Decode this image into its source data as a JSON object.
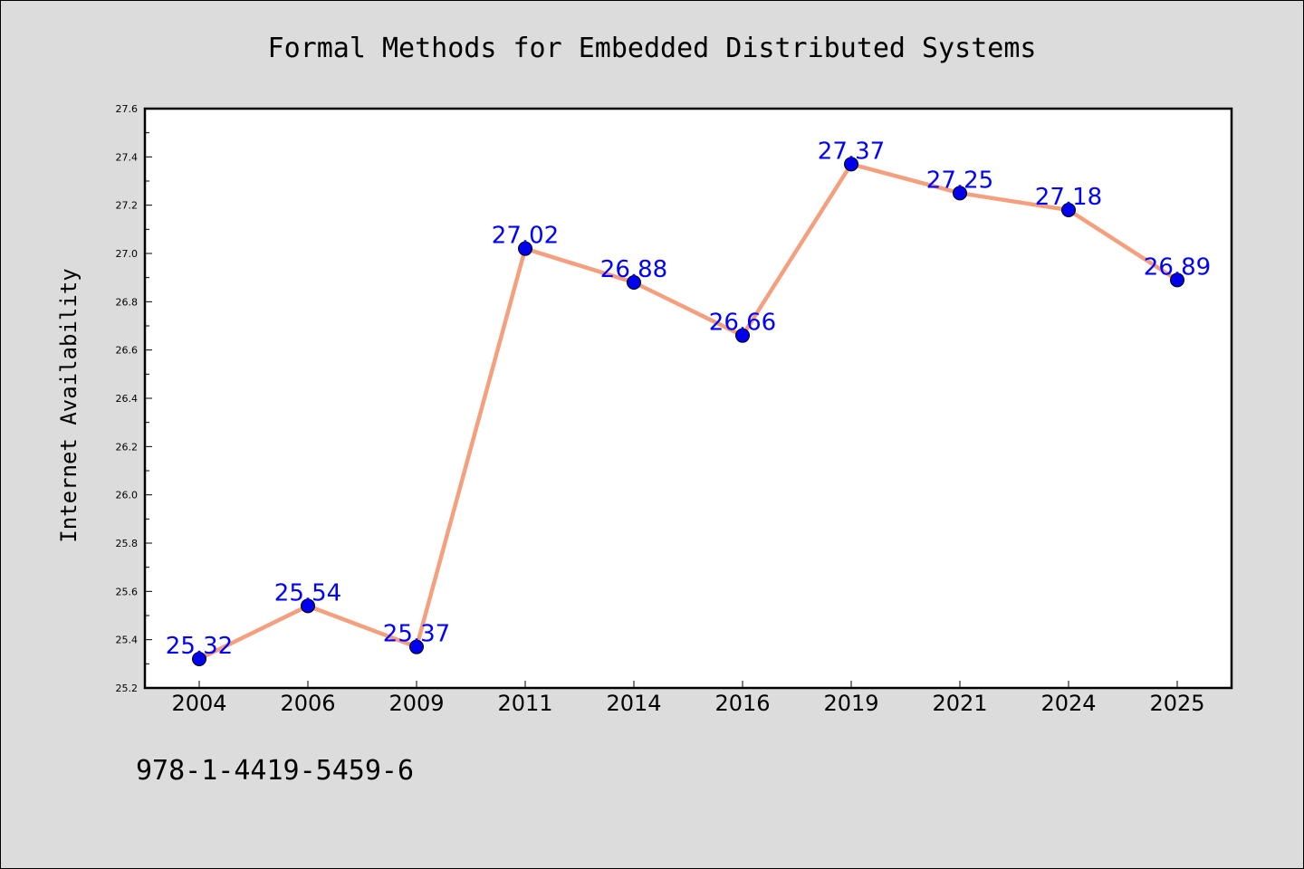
{
  "chart_data": {
    "type": "line",
    "title": "Formal Methods for Embedded Distributed Systems",
    "xlabel": "",
    "ylabel": "Internet Availability",
    "categories": [
      "2004",
      "2006",
      "2009",
      "2011",
      "2014",
      "2016",
      "2019",
      "2021",
      "2024",
      "2025"
    ],
    "values": [
      25.32,
      25.54,
      25.37,
      27.02,
      26.88,
      26.66,
      27.37,
      27.25,
      27.18,
      26.89
    ],
    "data_labels": [
      "25.32",
      "25.54",
      "25.37",
      "27.02",
      "26.88",
      "26.66",
      "27.37",
      "27.25",
      "27.18",
      "26.89"
    ],
    "ylim": [
      25.2,
      27.6
    ],
    "yticks": [
      "25.2",
      "25.4",
      "25.6",
      "25.8",
      "26.0",
      "26.2",
      "26.4",
      "26.6",
      "26.8",
      "27.0",
      "27.2",
      "27.4",
      "27.6"
    ],
    "grid": false,
    "legend": "none",
    "colors": {
      "line": "#f4a07f",
      "marker": "#0000ee",
      "label": "#0000ff",
      "plot_background": "#ffffff",
      "figure_background": "#dcdcdc"
    }
  },
  "footnote": "978-1-4419-5459-6"
}
